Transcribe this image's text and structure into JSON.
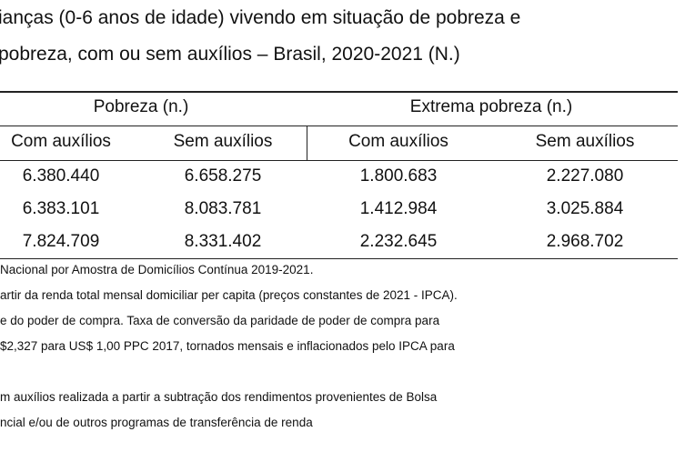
{
  "title": {
    "line1": "ianças (0-6 anos de idade) vivendo em situação de pobreza e",
    "line2": "pobreza, com ou sem auxílios – Brasil, 2020-2021 (N.)"
  },
  "table": {
    "groups": [
      "Pobreza (n.)",
      "Extrema pobreza (n.)"
    ],
    "columns": [
      "Com auxílios",
      "Sem auxílios",
      "Com auxílios",
      "Sem auxílios"
    ],
    "rows": [
      [
        "6.380.440",
        "6.658.275",
        "1.800.683",
        "2.227.080"
      ],
      [
        "6.383.101",
        "8.083.781",
        "1.412.984",
        "3.025.884"
      ],
      [
        "7.824.709",
        "8.331.402",
        "2.232.645",
        "2.968.702"
      ]
    ]
  },
  "notes": [
    "Nacional por Amostra de Domicílios Contínua 2019-2021.",
    "artir da renda total mensal domiciliar per capita (preços constantes de 2021 - IPCA).",
    "e do poder de compra. Taxa de conversão da paridade de poder de compra para",
    "$2,327 para US$ 1,00 PPC 2017, tornados mensais e inflacionados pelo IPCA para",
    "m auxílios realizada a partir a subtração dos rendimentos provenientes de Bolsa",
    "ncial e/ou de outros programas de transferência de renda"
  ]
}
